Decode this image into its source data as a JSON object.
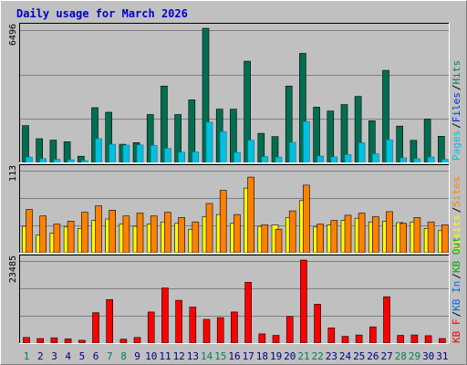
{
  "chart_data": {
    "type": "bar",
    "title": "Daily usage for March 2026",
    "categories": [
      "1",
      "2",
      "3",
      "4",
      "5",
      "6",
      "7",
      "8",
      "9",
      "10",
      "11",
      "12",
      "13",
      "14",
      "15",
      "16",
      "17",
      "18",
      "19",
      "20",
      "21",
      "22",
      "23",
      "24",
      "25",
      "26",
      "27",
      "28",
      "29",
      "30",
      "31"
    ],
    "weekend_days": [
      "1",
      "7",
      "8",
      "14",
      "15",
      "21",
      "22",
      "28",
      "29"
    ],
    "panels": [
      {
        "ymax_label": "6496",
        "ymax": 6496,
        "series": [
          {
            "name": "Pages",
            "color": "#00c0e0",
            "values": [
              260,
              180,
              150,
              130,
              90,
              1150,
              880,
              840,
              850,
              820,
              680,
              500,
              510,
              1950,
              1500,
              480,
              1080,
              280,
              260,
              970,
              1980,
              310,
              270,
              380,
              950,
              420,
              1100,
              220,
              180,
              260,
              150
            ]
          },
          {
            "name": "Files",
            "color": "#0033cc",
            "values": []
          },
          {
            "name": "Hits",
            "color": "#006e50",
            "values": [
              1780,
              1150,
              1080,
              1000,
              300,
              2650,
              2430,
              880,
              960,
              2320,
              3700,
              2320,
              3030,
              6496,
              2580,
              2580,
              4900,
              1410,
              1250,
              3700,
              5280,
              2680,
              2490,
              2800,
              3200,
              2020,
              4460,
              1760,
              1070,
              2100,
              1270
            ]
          }
        ]
      },
      {
        "ymax_label": "113",
        "ymax": 113,
        "series": [
          {
            "name": "Visits",
            "color": "#ffff00",
            "values": [
              36,
              24,
              27,
              35,
              33,
              44,
              46,
              39,
              36,
              39,
              42,
              40,
              32,
              49,
              52,
              40,
              88,
              36,
              38,
              48,
              71,
              35,
              38,
              44,
              47,
              42,
              43,
              41,
              42,
              33,
              30
            ]
          },
          {
            "name": "Sites",
            "color": "#ff8000",
            "values": [
              59,
              50,
              39,
              43,
              55,
              64,
              58,
              50,
              54,
              50,
              55,
              48,
              42,
              67,
              85,
              52,
              103,
              38,
              32,
              57,
              92,
              39,
              44,
              51,
              54,
              49,
              56,
              40,
              48,
              42,
              38
            ]
          }
        ]
      },
      {
        "ymax_label": "23485",
        "ymax": 23485,
        "series": [
          {
            "name": "KB In",
            "color": "#0066ff",
            "values": []
          },
          {
            "name": "KB Out",
            "color": "#00aa00",
            "values": []
          },
          {
            "name": "KB F",
            "color": "#ff0000",
            "values": [
              1600,
              1300,
              1500,
              1200,
              800,
              8600,
              12300,
              1100,
              1600,
              8800,
              15600,
              12100,
              10200,
              6700,
              7200,
              8800,
              17200,
              2600,
              2200,
              7500,
              23485,
              11000,
              4300,
              1900,
              2300,
              4600,
              13100,
              2200,
              2300,
              2100,
              1300
            ]
          }
        ]
      }
    ],
    "legend_right": [
      "Pages",
      "/",
      "Files",
      "/",
      "Hits",
      "Visits",
      "/",
      "Sites",
      "KB F",
      "/",
      "KB In",
      "/",
      "KB Out"
    ]
  }
}
